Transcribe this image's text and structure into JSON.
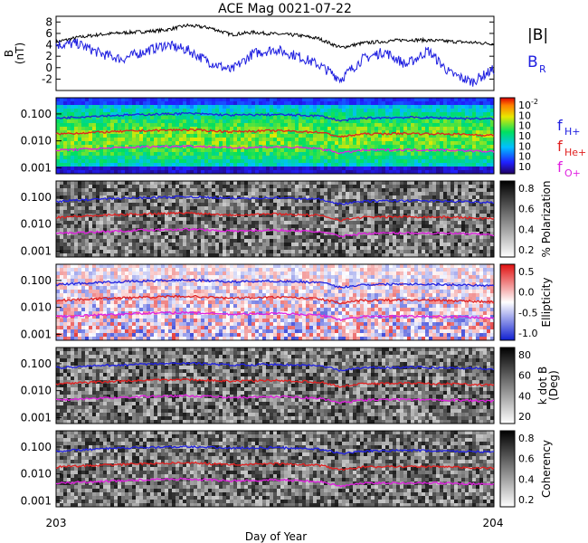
{
  "title": "ACE Mag 0021-07-22",
  "xlabel": "Day of Year",
  "x_ticks": [
    "203",
    "204"
  ],
  "chart_data": [
    {
      "type": "line",
      "ylabel_line1": "B",
      "ylabel_line2": "(nT)",
      "ylim": [
        -4,
        9
      ],
      "y_ticks": [
        "8",
        "6",
        "4",
        "2",
        "0",
        "-2"
      ],
      "y_tick_values": [
        8,
        6,
        4,
        2,
        0,
        -2
      ],
      "series": [
        {
          "name": "|B|",
          "color": "#000000",
          "x": [
            203.0,
            203.05,
            203.1,
            203.15,
            203.2,
            203.25,
            203.3,
            203.35,
            203.4,
            203.45,
            203.5,
            203.55,
            203.6,
            203.65,
            203.7,
            203.75,
            203.8,
            203.85,
            203.9,
            203.95,
            204.0
          ],
          "y": [
            4.5,
            5.3,
            5.8,
            6.1,
            6.3,
            6.6,
            7.4,
            7.0,
            5.8,
            6.2,
            5.9,
            5.7,
            5.1,
            3.5,
            4.3,
            4.6,
            4.9,
            4.8,
            4.6,
            4.4,
            4.2
          ]
        },
        {
          "name": "B",
          "sub": "R",
          "color": "#2020e0",
          "x": [
            203.0,
            203.05,
            203.1,
            203.15,
            203.2,
            203.25,
            203.3,
            203.35,
            203.4,
            203.45,
            203.5,
            203.55,
            203.6,
            203.65,
            203.7,
            203.75,
            203.8,
            203.85,
            203.9,
            203.95,
            204.0
          ],
          "y": [
            4.0,
            4.2,
            2.5,
            1.5,
            2.8,
            4.0,
            3.1,
            1.0,
            -0.5,
            2.5,
            3.2,
            2.1,
            0.5,
            -2.0,
            1.5,
            2.8,
            0.5,
            3.0,
            -1.0,
            -2.5,
            -0.3
          ]
        }
      ]
    },
    {
      "type": "heatmap",
      "yscale": "log",
      "y_ticks": [
        "0.100",
        "0.010",
        "0.001"
      ],
      "colorbar": "rainbow",
      "colorbar_ticks": [
        "10",
        "10",
        "10",
        "10",
        "10",
        "10",
        "10"
      ],
      "colorbar_exponents": [
        "-2",
        "",
        "",
        "",
        "",
        "",
        ""
      ],
      "legend": [
        {
          "name": "f",
          "sub": "H+",
          "color": "#2020e0"
        },
        {
          "name": "f",
          "sub": "He+",
          "color": "#e02020"
        },
        {
          "name": "f",
          "sub": "O+",
          "color": "#e020e0"
        }
      ]
    },
    {
      "type": "heatmap",
      "yscale": "log",
      "y_ticks": [
        "0.100",
        "0.010",
        "0.001"
      ],
      "colorbar": "gray",
      "colorbar_label": "% Polarization",
      "colorbar_ticks": [
        "0.8",
        "0.6",
        "0.4",
        "0.2"
      ]
    },
    {
      "type": "heatmap",
      "yscale": "log",
      "y_ticks": [
        "0.100",
        "0.010",
        "0.001"
      ],
      "colorbar": "bwr",
      "colorbar_label": "Ellipticity",
      "colorbar_ticks": [
        "0.5",
        "0.0",
        "-0.5",
        "-1.0"
      ]
    },
    {
      "type": "heatmap",
      "yscale": "log",
      "y_ticks": [
        "0.100",
        "0.010",
        "0.001"
      ],
      "colorbar": "gray",
      "colorbar_label_line1": "k dot B",
      "colorbar_label_line2": "(Deg)",
      "colorbar_ticks": [
        "80",
        "60",
        "40",
        "20"
      ]
    },
    {
      "type": "heatmap",
      "yscale": "log",
      "y_ticks": [
        "0.100",
        "0.010",
        "0.001"
      ],
      "colorbar": "gray",
      "colorbar_label": "Coherency",
      "colorbar_ticks": [
        "0.8",
        "0.6",
        "0.4",
        "0.2"
      ]
    }
  ],
  "gyro_lines": [
    {
      "name": "H+",
      "color": "#2020e0",
      "x": [
        203.0,
        203.1,
        203.2,
        203.3,
        203.4,
        203.5,
        203.6,
        203.65,
        203.7,
        203.8,
        203.9,
        204.0
      ],
      "y": [
        0.07,
        0.085,
        0.095,
        0.105,
        0.09,
        0.095,
        0.085,
        0.055,
        0.07,
        0.075,
        0.07,
        0.065
      ]
    },
    {
      "name": "He+",
      "color": "#e02020",
      "x": [
        203.0,
        203.1,
        203.2,
        203.3,
        203.4,
        203.5,
        203.6,
        203.65,
        203.7,
        203.8,
        203.9,
        204.0
      ],
      "y": [
        0.018,
        0.021,
        0.024,
        0.026,
        0.022,
        0.024,
        0.021,
        0.014,
        0.018,
        0.019,
        0.018,
        0.016
      ]
    },
    {
      "name": "O+",
      "color": "#e020e0",
      "x": [
        203.0,
        203.1,
        203.2,
        203.3,
        203.4,
        203.5,
        203.6,
        203.65,
        203.7,
        203.8,
        203.9,
        204.0
      ],
      "y": [
        0.0045,
        0.0052,
        0.006,
        0.0065,
        0.0055,
        0.006,
        0.0052,
        0.0035,
        0.0045,
        0.0047,
        0.0045,
        0.004
      ]
    }
  ]
}
